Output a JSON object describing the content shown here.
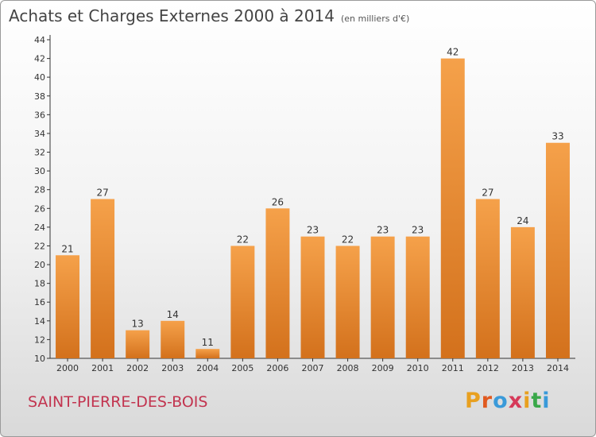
{
  "header": {
    "title": "Achats et Charges Externes 2000 à 2014",
    "unit": "(en milliers d'€)"
  },
  "footer": {
    "place_name": "SAINT-PIERRE-DES-BOIS",
    "logo_text": "Proxiti",
    "logo_colors": [
      "#e8a020",
      "#e05a20",
      "#3a9ad9",
      "#d63a5a",
      "#e8a020",
      "#3aa84a",
      "#3a9ad9"
    ]
  },
  "colors": {
    "bar_light": "#f5a14a",
    "bar_dark": "#d3711c",
    "axis": "#333333",
    "grid": "#cccccc",
    "text": "#333333"
  },
  "chart_data": {
    "type": "bar",
    "categories": [
      "2000",
      "2001",
      "2002",
      "2003",
      "2004",
      "2005",
      "2006",
      "2007",
      "2008",
      "2009",
      "2010",
      "2011",
      "2012",
      "2013",
      "2014"
    ],
    "values": [
      21,
      27,
      13,
      14,
      11,
      22,
      26,
      23,
      22,
      23,
      23,
      42,
      27,
      24,
      33
    ],
    "data_labels": [
      "21",
      "27",
      "13",
      "14",
      "11",
      "22",
      "26",
      "23",
      "22",
      "23",
      "23",
      "42",
      "27",
      "24",
      "33"
    ],
    "ylim": [
      10,
      44
    ],
    "yticks": [
      10,
      12,
      14,
      16,
      18,
      20,
      22,
      24,
      26,
      28,
      30,
      32,
      34,
      36,
      38,
      40,
      42,
      44
    ],
    "grid": false,
    "legend": "none"
  }
}
